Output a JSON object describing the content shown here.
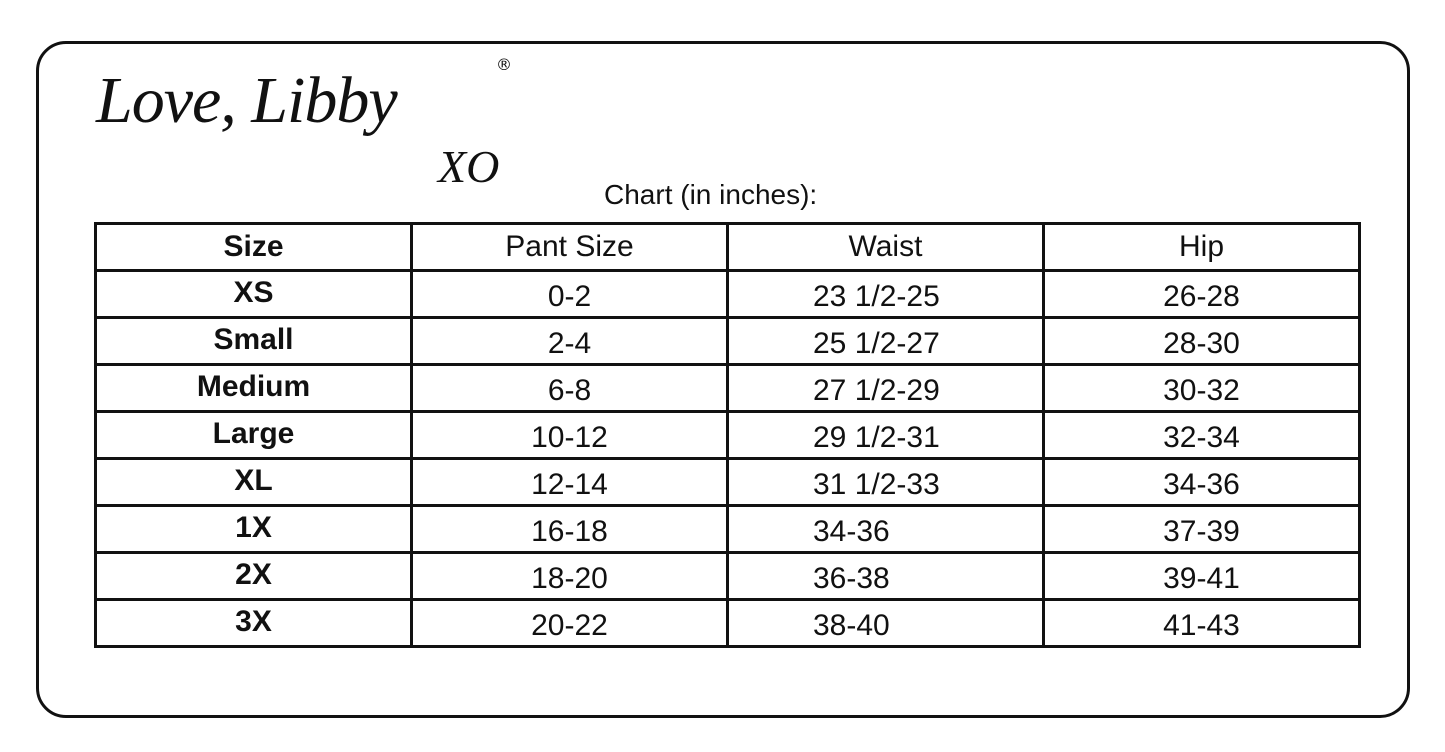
{
  "logo": {
    "text": "Love, Libby",
    "suffix": "XO",
    "mark": "®"
  },
  "caption": "Chart (in inches):",
  "table": {
    "headers": [
      "Size",
      "Pant Size",
      "Waist",
      "Hip"
    ],
    "rows": [
      [
        "XS",
        "0-2",
        "23 1/2-25",
        "26-28"
      ],
      [
        "Small",
        "2-4",
        "25 1/2-27",
        "28-30"
      ],
      [
        "Medium",
        "6-8",
        "27 1/2-29",
        "30-32"
      ],
      [
        "Large",
        "10-12",
        "29 1/2-31",
        "32-34"
      ],
      [
        "XL",
        "12-14",
        "31 1/2-33",
        "34-36"
      ],
      [
        "1X",
        "16-18",
        "34-36",
        "37-39"
      ],
      [
        "2X",
        "18-20",
        "36-38",
        "39-41"
      ],
      [
        "3X",
        "20-22",
        "38-40",
        "41-43"
      ]
    ]
  }
}
